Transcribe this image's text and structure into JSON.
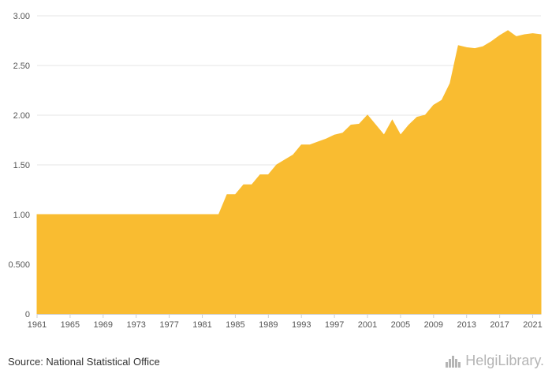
{
  "chart_data": {
    "type": "area",
    "title": "",
    "xlabel": "",
    "ylabel": "",
    "color": "#F9BC31",
    "xlim": [
      1961,
      2022
    ],
    "ylim": [
      0,
      3.0
    ],
    "yticks": [
      0,
      0.5,
      1.0,
      1.5,
      2.0,
      2.5,
      3.0
    ],
    "ytick_labels": [
      "0",
      "0.500",
      "1.00",
      "1.50",
      "2.00",
      "2.50",
      "3.00"
    ],
    "xticks": [
      1961,
      1965,
      1969,
      1973,
      1977,
      1981,
      1985,
      1989,
      1993,
      1997,
      2001,
      2005,
      2009,
      2013,
      2017,
      2021
    ],
    "grid": true,
    "x": [
      1961,
      1962,
      1963,
      1964,
      1965,
      1966,
      1967,
      1968,
      1969,
      1970,
      1971,
      1972,
      1973,
      1974,
      1975,
      1976,
      1977,
      1978,
      1979,
      1980,
      1981,
      1982,
      1983,
      1984,
      1985,
      1986,
      1987,
      1988,
      1989,
      1990,
      1991,
      1992,
      1993,
      1994,
      1995,
      1996,
      1997,
      1998,
      1999,
      2000,
      2001,
      2002,
      2003,
      2004,
      2005,
      2006,
      2007,
      2008,
      2009,
      2010,
      2011,
      2012,
      2013,
      2014,
      2015,
      2016,
      2017,
      2018,
      2019,
      2020,
      2021,
      2022
    ],
    "values": [
      1,
      1,
      1,
      1,
      1,
      1,
      1,
      1,
      1,
      1,
      1,
      1,
      1,
      1,
      1,
      1,
      1,
      1,
      1,
      1,
      1,
      1,
      1,
      1.2,
      1.2,
      1.3,
      1.3,
      1.4,
      1.4,
      1.5,
      1.55,
      1.6,
      1.7,
      1.7,
      1.73,
      1.76,
      1.8,
      1.82,
      1.9,
      1.91,
      2.0,
      1.9,
      1.8,
      1.95,
      1.8,
      1.9,
      1.98,
      2.0,
      2.1,
      2.15,
      2.32,
      2.7,
      2.68,
      2.67,
      2.69,
      2.74,
      2.8,
      2.85,
      2.79,
      2.81,
      2.82,
      2.81
    ]
  },
  "source_text": "Source: National Statistical Office",
  "logo_text": "HelgiLibrary."
}
